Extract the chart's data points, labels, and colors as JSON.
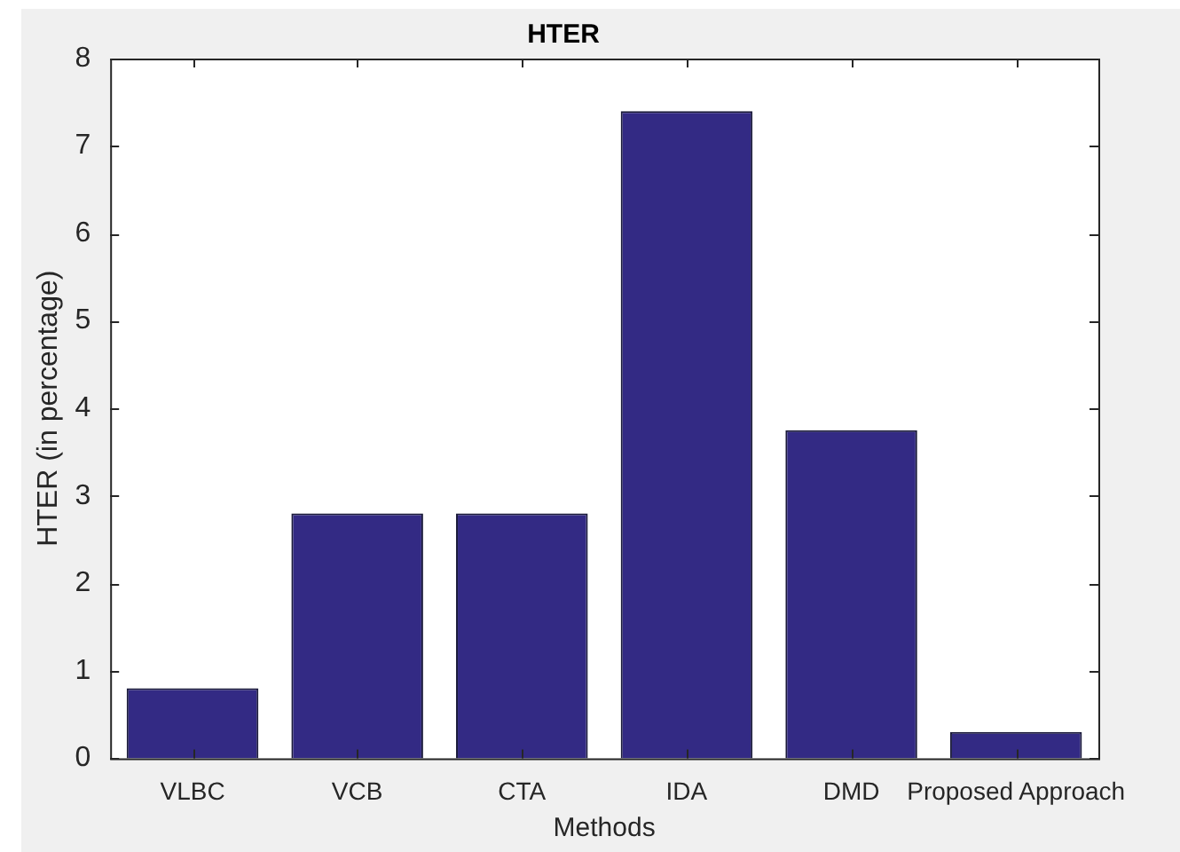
{
  "chart_data": {
    "type": "bar",
    "title": "HTER",
    "xlabel": "Methods",
    "ylabel": "HTER (in percentage)",
    "categories": [
      "VLBC",
      "VCB",
      "CTA",
      "IDA",
      "DMD",
      "Proposed Approach"
    ],
    "values": [
      0.8,
      2.8,
      2.8,
      7.4,
      3.75,
      0.3
    ],
    "color": "#332a84",
    "ylim": [
      0,
      8
    ],
    "yticks": [
      0,
      1,
      2,
      3,
      4,
      5,
      6,
      7,
      8
    ],
    "grid": false,
    "legend": false
  }
}
